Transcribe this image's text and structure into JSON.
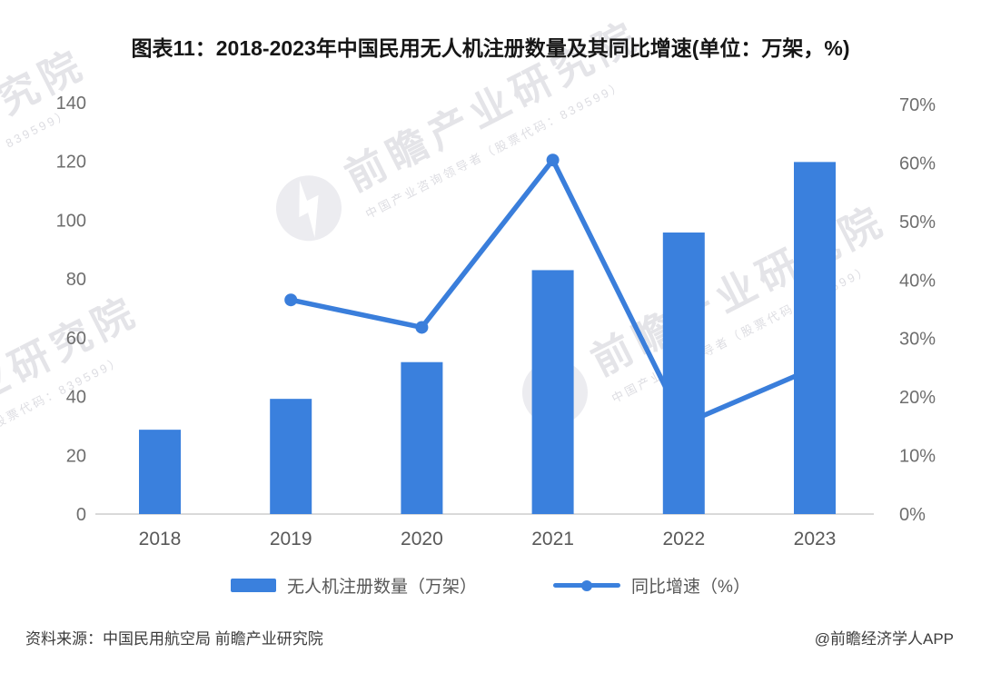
{
  "header": {
    "title": "图表11：2018-2023年中国民用无人机注册数量及其同比增速(单位：万架，%)"
  },
  "chart_data": {
    "type": "bar+line",
    "categories": [
      "2018",
      "2019",
      "2020",
      "2021",
      "2022",
      "2023"
    ],
    "series": [
      {
        "name": "无人机注册数量（万架）",
        "type": "bar",
        "axis": "left",
        "values": [
          28.7,
          39.2,
          51.7,
          83,
          95.8,
          119.8
        ],
        "color": "#3a80dd"
      },
      {
        "name": "同比增速（%）",
        "type": "line",
        "axis": "right",
        "values": [
          null,
          36.6,
          31.9,
          60.5,
          15.4,
          25.0
        ],
        "color": "#3a7edb"
      }
    ],
    "left_axis": {
      "min": 0,
      "max": 140,
      "step": 20,
      "labels": [
        "0",
        "20",
        "40",
        "60",
        "80",
        "100",
        "120",
        "140"
      ]
    },
    "right_axis": {
      "min": 0,
      "max": 70,
      "step": 10,
      "labels": [
        "0%",
        "10%",
        "20%",
        "30%",
        "40%",
        "50%",
        "60%",
        "70%"
      ]
    },
    "grid": "off",
    "legend_position": "bottom",
    "title": "图表11：2018-2023年中国民用无人机注册数量及其同比增速(单位：万架，%)",
    "xlabel": "",
    "ylabel_left": "万架",
    "ylabel_right": "%"
  },
  "watermark": {
    "text": "前瞻产业研究院",
    "subtext": "中国产业咨询领导者（股票代码：839599）"
  },
  "footer": {
    "source": "资料来源：中国民用航空局 前瞻产业研究院",
    "credit": "@前瞻经济学人APP"
  },
  "colors": {
    "bar": "#3a80dd",
    "line": "#3a7edb",
    "axis_label": "#6e6e6e",
    "category_label": "#595959",
    "baseline": "#d9d9d9",
    "watermark": "#e4e4e8"
  }
}
